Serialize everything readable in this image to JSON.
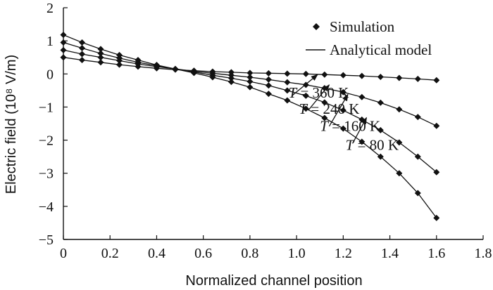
{
  "chart_data": {
    "type": "line",
    "title": "",
    "xlabel": "Normalized channel position",
    "ylabel": "Electric field (10⁸ V/m)",
    "xlim": [
      0,
      1.8
    ],
    "ylim": [
      -5,
      2
    ],
    "x_ticks": [
      0,
      0.2,
      0.4,
      0.6,
      0.8,
      1.0,
      1.2,
      1.4,
      1.6,
      1.8
    ],
    "x_tick_labels": [
      "0",
      "0.2",
      "0.4",
      "0.6",
      "0.8",
      "1.0",
      "1.2",
      "1.4",
      "1.6",
      "1.8"
    ],
    "y_ticks": [
      2,
      1,
      0,
      -1,
      -2,
      -3,
      -4,
      -5
    ],
    "y_tick_labels": [
      "2",
      "1",
      "0",
      "−1",
      "−2",
      "−3",
      "−4",
      "−5"
    ],
    "grid": false,
    "legend": {
      "position": "top-right",
      "entries": [
        "Simulation",
        "Analytical model"
      ]
    },
    "series": [
      {
        "label": "T = 80 K",
        "color": "#111111",
        "x": [
          0.0,
          0.08,
          0.16,
          0.24,
          0.32,
          0.4,
          0.48,
          0.56,
          0.64,
          0.72,
          0.8,
          0.88,
          0.96,
          1.04,
          1.12,
          1.2,
          1.28,
          1.36,
          1.44,
          1.52,
          1.6
        ],
        "y": [
          1.18,
          0.95,
          0.75,
          0.57,
          0.42,
          0.27,
          0.15,
          0.03,
          -0.1,
          -0.24,
          -0.4,
          -0.6,
          -0.8,
          -1.05,
          -1.33,
          -1.65,
          -2.05,
          -2.5,
          -3.0,
          -3.6,
          -4.35
        ]
      },
      {
        "label": "T = 160 K",
        "color": "#111111",
        "x": [
          0.0,
          0.08,
          0.16,
          0.24,
          0.32,
          0.4,
          0.48,
          0.56,
          0.64,
          0.72,
          0.8,
          0.88,
          0.96,
          1.04,
          1.12,
          1.2,
          1.28,
          1.36,
          1.44,
          1.52,
          1.6
        ],
        "y": [
          0.95,
          0.78,
          0.62,
          0.48,
          0.35,
          0.25,
          0.15,
          0.06,
          -0.04,
          -0.13,
          -0.23,
          -0.35,
          -0.5,
          -0.66,
          -0.86,
          -1.1,
          -1.38,
          -1.7,
          -2.07,
          -2.5,
          -2.97
        ]
      },
      {
        "label": "T = 240 K",
        "color": "#111111",
        "x": [
          0.0,
          0.08,
          0.16,
          0.24,
          0.32,
          0.4,
          0.48,
          0.56,
          0.64,
          0.72,
          0.8,
          0.88,
          0.96,
          1.04,
          1.12,
          1.2,
          1.28,
          1.36,
          1.44,
          1.52,
          1.6
        ],
        "y": [
          0.72,
          0.6,
          0.5,
          0.4,
          0.3,
          0.22,
          0.15,
          0.08,
          0.02,
          -0.04,
          -0.1,
          -0.17,
          -0.25,
          -0.33,
          -0.43,
          -0.55,
          -0.7,
          -0.87,
          -1.07,
          -1.3,
          -1.57
        ]
      },
      {
        "label": "T = 360 K",
        "color": "#111111",
        "x": [
          0.0,
          0.08,
          0.16,
          0.24,
          0.32,
          0.4,
          0.48,
          0.56,
          0.64,
          0.72,
          0.8,
          0.88,
          0.96,
          1.04,
          1.12,
          1.2,
          1.28,
          1.36,
          1.44,
          1.52,
          1.6
        ],
        "y": [
          0.5,
          0.42,
          0.35,
          0.28,
          0.22,
          0.17,
          0.13,
          0.1,
          0.07,
          0.05,
          0.03,
          0.02,
          0.01,
          0.0,
          -0.02,
          -0.04,
          -0.06,
          -0.09,
          -0.12,
          -0.15,
          -0.19
        ]
      }
    ],
    "annotations": [
      {
        "label": "T = 360 K",
        "prefix": "T",
        "suffix": " = 360 K",
        "text_x": 0.965,
        "text_y": -0.72,
        "arrow_from": [
          0.98,
          -0.66
        ],
        "arrow_to": [
          1.09,
          -0.02
        ]
      },
      {
        "label": "T = 240 K",
        "prefix": "T",
        "suffix": " = 240 K",
        "text_x": 1.01,
        "text_y": -1.2,
        "arrow_from": [
          1.05,
          -1.1
        ],
        "arrow_to": [
          1.14,
          -0.33
        ]
      },
      {
        "label": "T = 160 K",
        "prefix": "T",
        "suffix": " = 160 K",
        "text_x": 1.1,
        "text_y": -1.72,
        "arrow_from": [
          1.14,
          -1.58
        ],
        "arrow_to": [
          1.22,
          -0.62
        ]
      },
      {
        "label": "T = 80 K",
        "prefix": "T",
        "suffix": " = 80 K",
        "text_x": 1.21,
        "text_y": -2.3,
        "arrow_from": [
          1.24,
          -2.1
        ],
        "arrow_to": [
          1.3,
          -1.32
        ]
      }
    ]
  }
}
